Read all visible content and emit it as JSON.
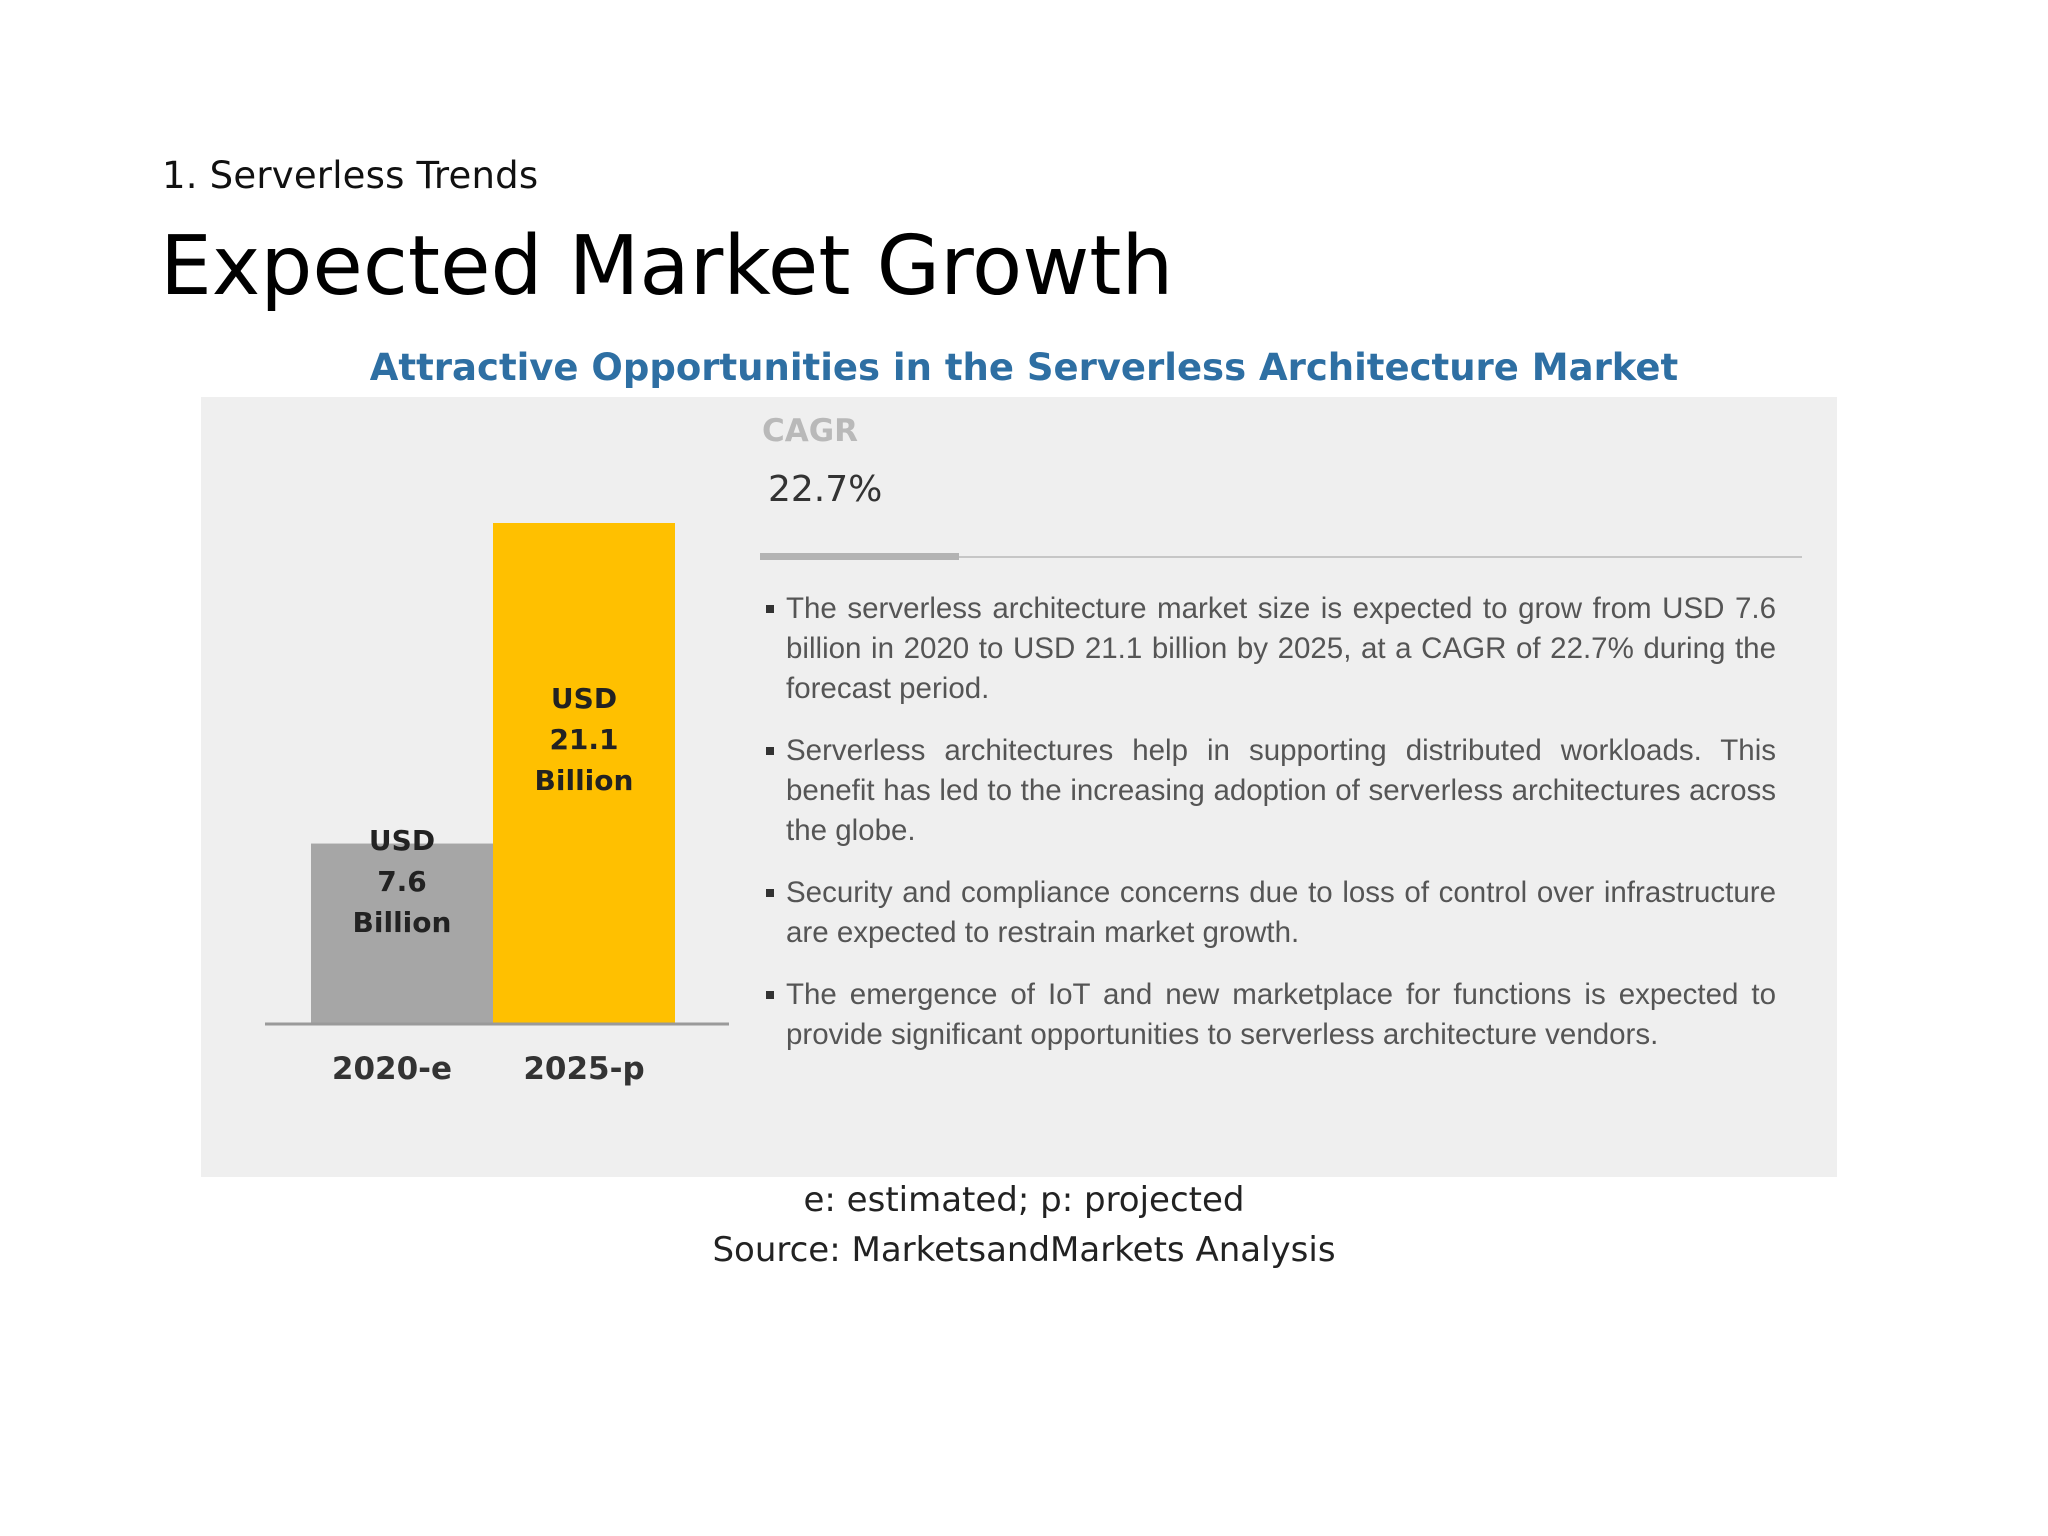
{
  "slide": {
    "section_label": "1. Serverless Trends",
    "title": "Expected Market Growth"
  },
  "figure": {
    "title": "Attractive Opportunities in the Serverless Architecture Market",
    "cagr_label": "CAGR",
    "cagr_value": "22.7%",
    "bullets": [
      "The serverless architecture market size is expected to grow from USD 7.6 billion in 2020 to USD 21.1 billion by 2025, at a CAGR of 22.7% during the forecast period.",
      "Serverless architectures help in supporting distributed workloads. This benefit has led to the increasing adoption of serverless architectures across the globe.",
      "Security and compliance concerns due to loss of control over infrastructure are expected to restrain market growth.",
      "The emergence of IoT and new marketplace for functions is expected to provide significant opportunities to serverless architecture vendors."
    ],
    "footnote": "e: estimated; p: projected",
    "source": "Source: MarketsandMarkets Analysis"
  },
  "colors": {
    "title_blue": "#2e6fa3",
    "bar_2020": "#a6a6a6",
    "bar_2025": "#ffc000",
    "panel_bg": "#efefef"
  },
  "chart_data": {
    "type": "bar",
    "title": "Attractive Opportunities in the Serverless Architecture Market",
    "categories": [
      "2020-e",
      "2025-p"
    ],
    "values": [
      7.6,
      21.1
    ],
    "unit": "USD Billion",
    "data_labels": [
      [
        "USD",
        "7.6",
        "Billion"
      ],
      [
        "USD",
        "21.1",
        "Billion"
      ]
    ],
    "xlabel": "",
    "ylabel": "",
    "ylim": [
      0,
      21.1
    ],
    "grid": false,
    "legend": "none"
  }
}
